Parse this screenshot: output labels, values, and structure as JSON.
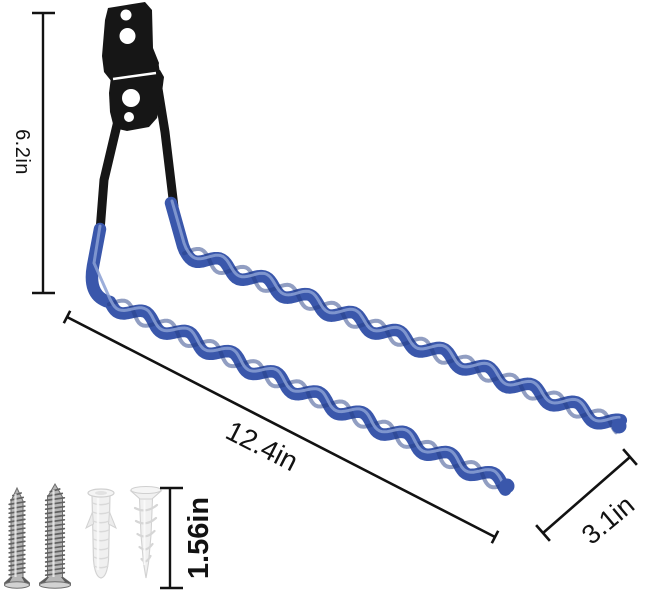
{
  "scene": {
    "description": "Wall-mounted double garage hook with blue anti-slip spiral arms, dimension callouts and mounting hardware",
    "background": "#ffffff"
  },
  "colors": {
    "bracket": "#161616",
    "hook_blue": "#3a57ab",
    "hook_blue_dark": "#243d85",
    "hook_highlight": "#8ba0d4",
    "dimension_ink": "#121212",
    "screw_body": "#b6b6b6",
    "screw_edge": "#6e6e6e",
    "anchor_body": "#f0f0f0",
    "anchor_edge": "#d2d2d2",
    "hole_white": "#ffffff"
  },
  "dimensions": {
    "height": {
      "label": "6.2in"
    },
    "length": {
      "label": "12.4in"
    },
    "depth": {
      "label": "3.1in"
    },
    "hardware_height": {
      "label": "1.56in"
    }
  },
  "hardware": {
    "items": [
      "screw-small",
      "screw-large",
      "expansion-anchor",
      "self-drilling-anchor"
    ]
  }
}
